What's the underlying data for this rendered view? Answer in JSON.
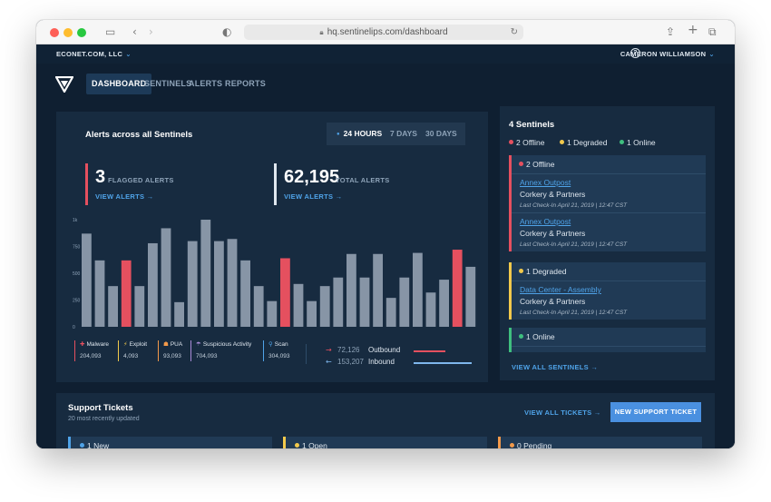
{
  "browser": {
    "url": "hq.sentinelips.com/dashboard",
    "icons": [
      "sidebar-icon",
      "back-icon",
      "forward-icon",
      "shield-icon",
      "lock-icon",
      "reload-icon",
      "share-icon",
      "new-tab-icon",
      "tabs-icon"
    ]
  },
  "orgbar": {
    "org": "ECONET.COM, LLC",
    "help": "?",
    "user": "CAMERON WILLIAMSON"
  },
  "nav": {
    "tabs": [
      {
        "label": "DASHBOARD",
        "active": true
      },
      {
        "label": "SENTINELS",
        "active": false
      },
      {
        "label": "ALERTS",
        "active": false
      },
      {
        "label": "REPORTS",
        "active": false
      }
    ]
  },
  "alerts": {
    "title": "Alerts across all Sentinels",
    "ranges": [
      "24 HOURS",
      "7 DAYS",
      "30 DAYS"
    ],
    "active_range": "24 HOURS",
    "flagged": {
      "value": "3",
      "label": "FLAGGED ALERTS",
      "link": "VIEW ALERTS →"
    },
    "total": {
      "value": "62,195",
      "label": "TOTAL ALERTS",
      "link": "VIEW ALERTS →"
    },
    "legend": [
      {
        "icon": "✚",
        "name": "Malware",
        "value": "204,093",
        "color": "#e5505f"
      },
      {
        "icon": "⚡",
        "name": "Exploit",
        "value": "4,093",
        "color": "#f2c94c"
      },
      {
        "icon": "☗",
        "name": "PUA",
        "value": "93,093",
        "color": "#f2994a"
      },
      {
        "icon": "☂",
        "name": "Suspicious Activity",
        "value": "704,093",
        "color": "#a98bd8"
      },
      {
        "icon": "⚲",
        "name": "Scan",
        "value": "304,093",
        "color": "#4fa3e8"
      }
    ],
    "traffic": [
      {
        "arrow": "→",
        "value": "72,126",
        "name": "Outbound",
        "color": "#e5505f"
      },
      {
        "arrow": "←",
        "value": "153,207",
        "name": "Inbound",
        "color": "#7fb6ec"
      }
    ]
  },
  "chart_data": {
    "type": "bar",
    "yticks": [
      "0",
      "250",
      "500",
      "750",
      "1k"
    ],
    "ylim": [
      0,
      1000
    ],
    "values": [
      870,
      620,
      380,
      620,
      380,
      780,
      920,
      230,
      800,
      1000,
      800,
      820,
      620,
      380,
      240,
      640,
      400,
      240,
      380,
      460,
      680,
      460,
      680,
      270,
      460,
      690,
      320,
      440,
      720,
      560
    ],
    "highlight_color": "#e5505f",
    "bar_color": "#8795a6",
    "highlighted_indices": [
      3,
      15,
      28
    ]
  },
  "sentinels": {
    "title": "4 Sentinels",
    "summary": [
      {
        "label": "2 Offline",
        "color": "#e5505f"
      },
      {
        "label": "1 Degraded",
        "color": "#f2c94c"
      },
      {
        "label": "1 Online",
        "color": "#3fbf7f"
      }
    ],
    "groups": [
      {
        "label": "2 Offline",
        "color": "#e5505f",
        "items": [
          {
            "name": "Annex Outpost",
            "customer": "Corkery & Partners",
            "checkin": "Last Check-In April 21, 2019 | 12:47 CST"
          },
          {
            "name": "Annex Outpost",
            "customer": "Corkery & Partners",
            "checkin": "Last Check-In April 21, 2019 | 12:47 CST"
          }
        ]
      },
      {
        "label": "1 Degraded",
        "color": "#f2c94c",
        "items": [
          {
            "name": "Data Center - Assembly",
            "customer": "Corkery & Partners",
            "checkin": "Last Check-In April 21, 2019 | 12:47 CST"
          }
        ]
      },
      {
        "label": "1 Online",
        "color": "#3fbf7f",
        "items": []
      }
    ],
    "view_all": "VIEW ALL SENTINELS →"
  },
  "tickets": {
    "title": "Support Tickets",
    "subtitle": "20 most recently updated",
    "view_all": "VIEW ALL TICKETS →",
    "new_button": "NEW SUPPORT TICKET",
    "columns": [
      {
        "label": "1 New",
        "color": "#4fa3e8"
      },
      {
        "label": "1 Open",
        "color": "#f2c94c"
      },
      {
        "label": "0 Pending",
        "color": "#f2994a"
      }
    ]
  }
}
